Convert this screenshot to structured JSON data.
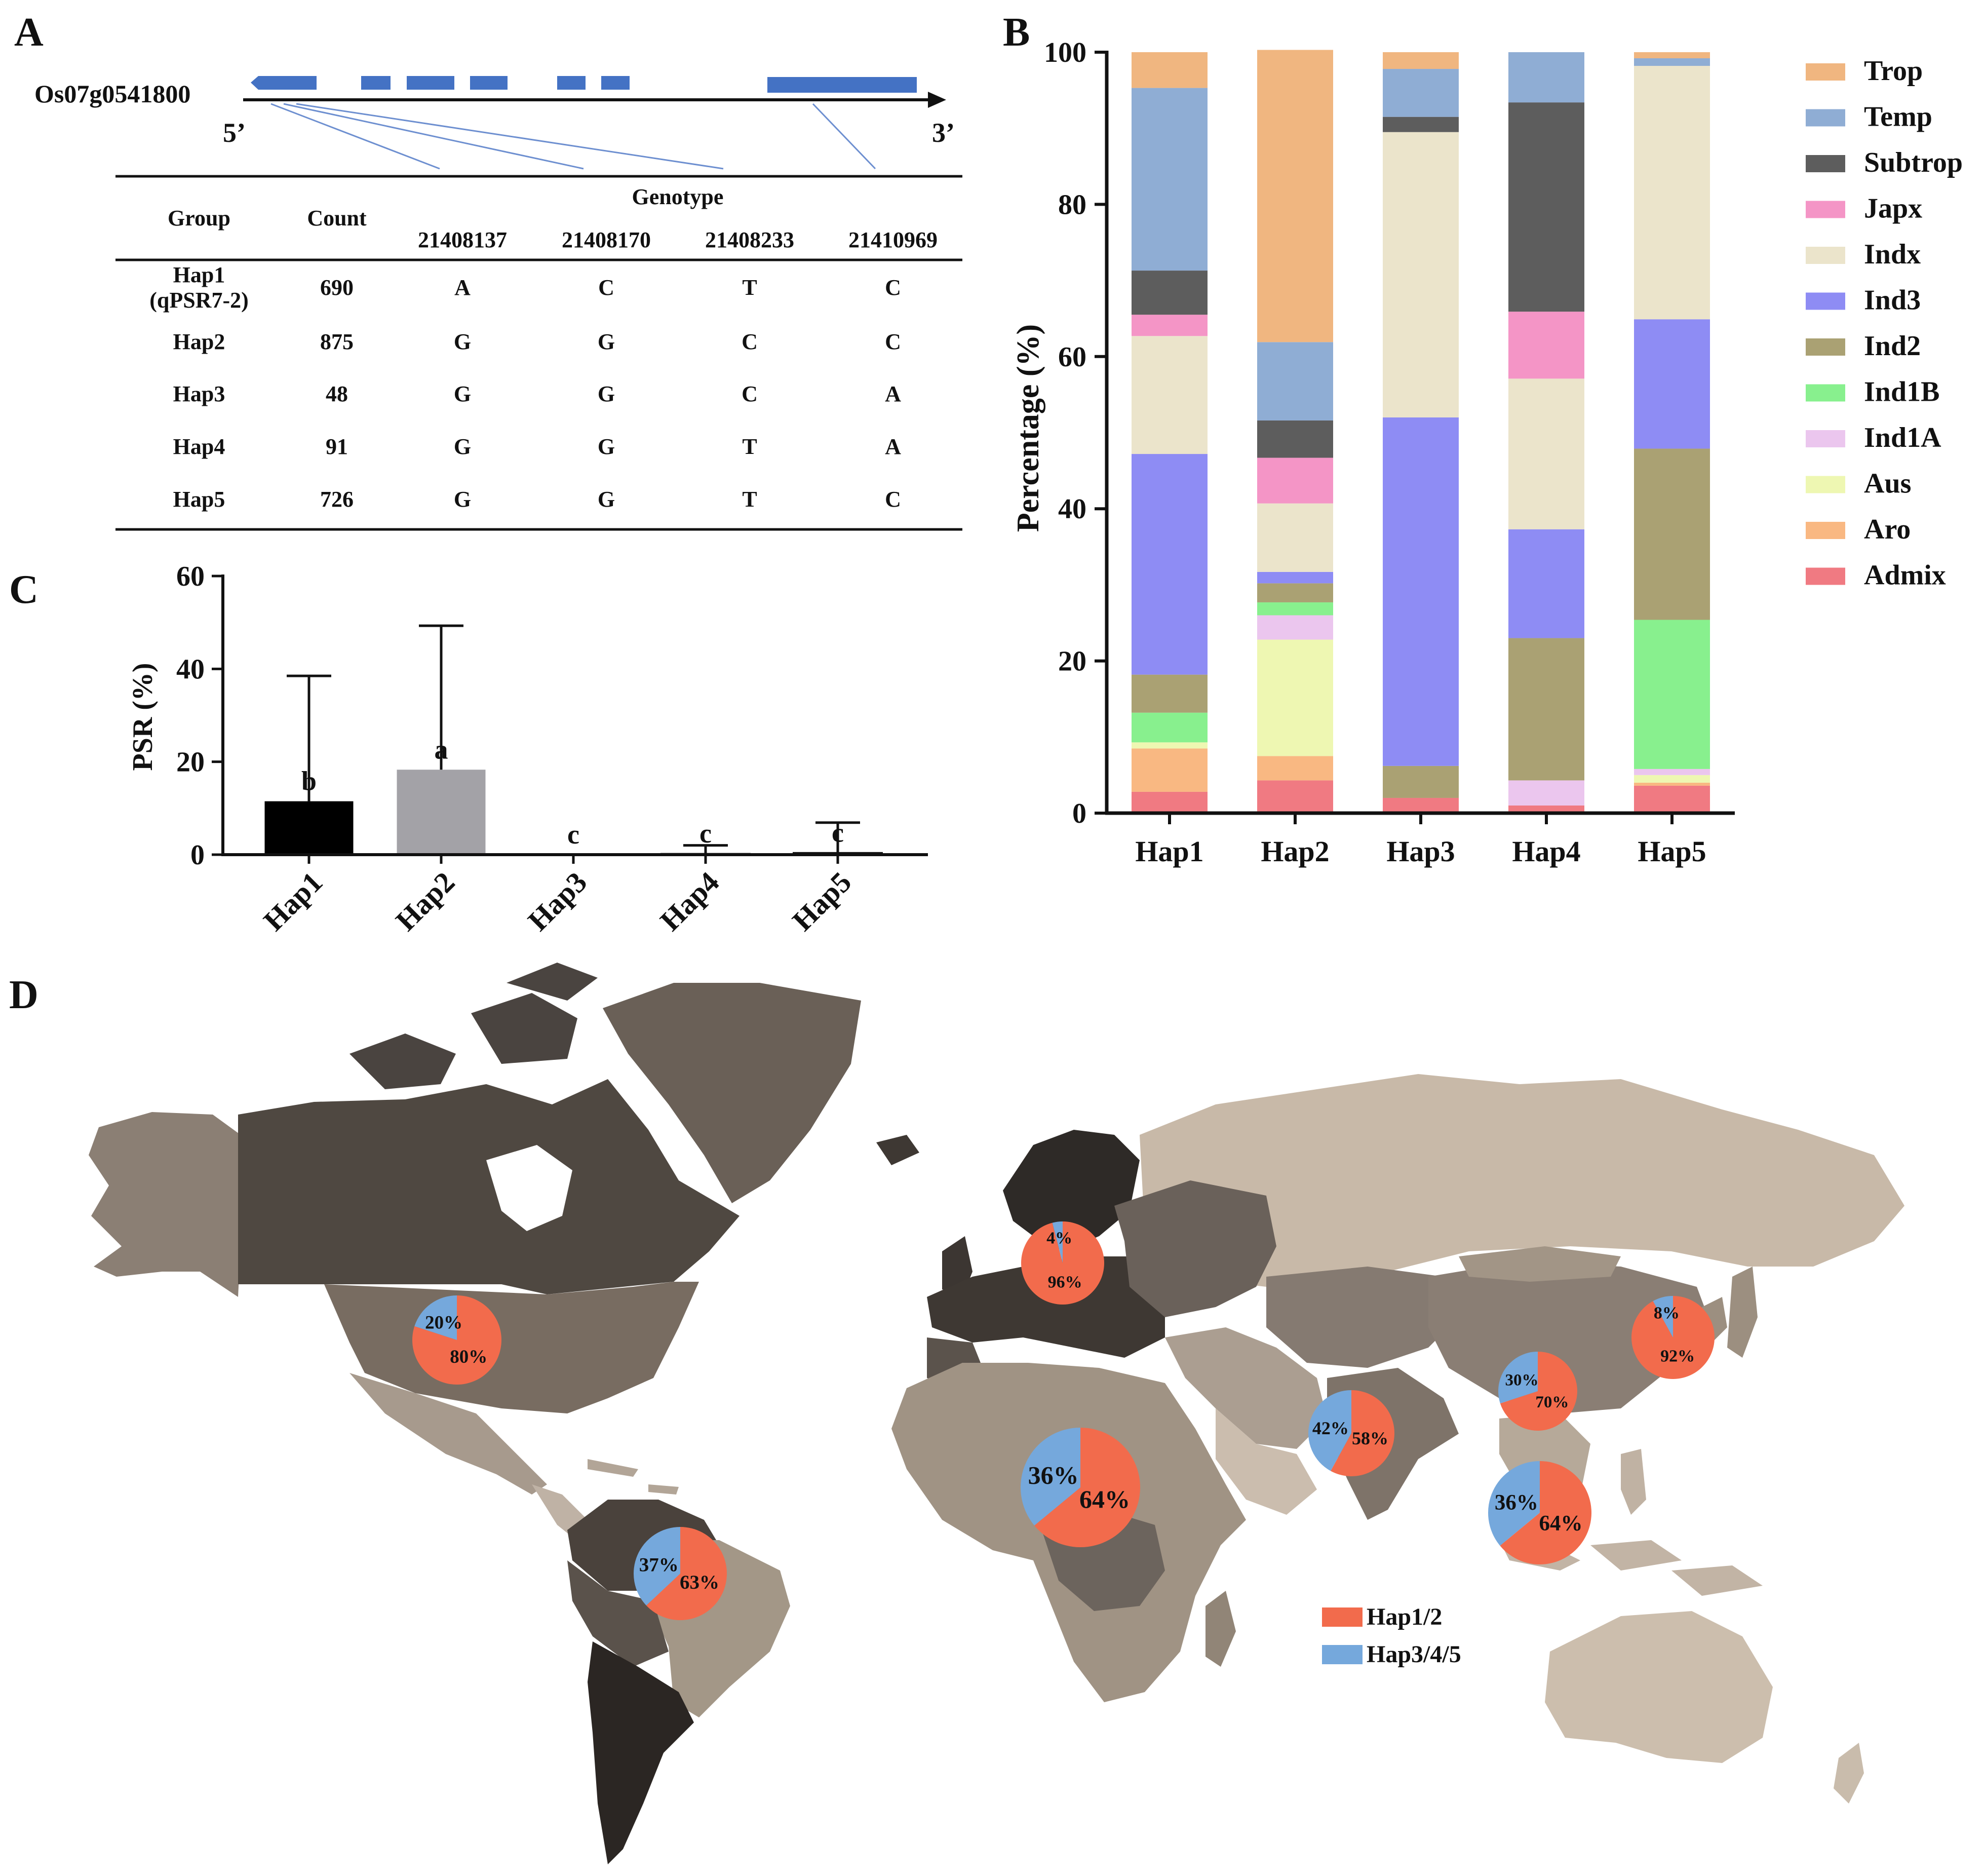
{
  "figure": {
    "panel_labels": [
      "A",
      "B",
      "C",
      "D"
    ]
  },
  "gene_model": {
    "gene_id": "Os07g0541800",
    "five_prime": "5’",
    "three_prime": "3’",
    "exon_color": "#4472c4"
  },
  "genotype_table": {
    "headers": {
      "group": "Group",
      "count": "Count",
      "genotype": "Genotype",
      "positions": [
        "21408137",
        "21408170",
        "21408233",
        "21410969"
      ]
    },
    "rows": [
      {
        "group": "Hap1",
        "group_sub": "(qPSR7-2)",
        "count": "690",
        "alleles": [
          "A",
          "C",
          "T",
          "C"
        ]
      },
      {
        "group": "Hap2",
        "group_sub": "",
        "count": "875",
        "alleles": [
          "G",
          "G",
          "C",
          "C"
        ]
      },
      {
        "group": "Hap3",
        "group_sub": "",
        "count": "48",
        "alleles": [
          "G",
          "G",
          "C",
          "A"
        ]
      },
      {
        "group": "Hap4",
        "group_sub": "",
        "count": "91",
        "alleles": [
          "G",
          "G",
          "T",
          "A"
        ]
      },
      {
        "group": "Hap5",
        "group_sub": "",
        "count": "726",
        "alleles": [
          "G",
          "G",
          "T",
          "C"
        ]
      }
    ]
  },
  "chart_data": [
    {
      "id": "B",
      "type": "bar",
      "stacked": true,
      "title": "",
      "xlabel": "",
      "ylabel": "Percentage (%)",
      "ylim": [
        0,
        100
      ],
      "yticks": [
        0,
        20,
        40,
        60,
        80,
        100
      ],
      "categories": [
        "Hap1",
        "Hap2",
        "Hap3",
        "Hap4",
        "Hap5"
      ],
      "legend_position": "right",
      "series": [
        {
          "name": "Admix",
          "color": "#f07a82",
          "values": [
            2.8,
            4.3,
            2.0,
            1.0,
            3.6
          ]
        },
        {
          "name": "Aro",
          "color": "#f9b882",
          "values": [
            5.7,
            3.2,
            0,
            0,
            0.4
          ]
        },
        {
          "name": "Aus",
          "color": "#eef7b2",
          "values": [
            0.8,
            15.3,
            0,
            0,
            1.0
          ]
        },
        {
          "name": "Ind1A",
          "color": "#ebc6ee",
          "values": [
            0,
            3.2,
            0,
            3.3,
            0.8
          ]
        },
        {
          "name": "Ind1B",
          "color": "#88f08e",
          "values": [
            3.9,
            1.7,
            0,
            0,
            19.6
          ]
        },
        {
          "name": "Ind2",
          "color": "#aaa173",
          "values": [
            5.0,
            2.5,
            4.2,
            18.7,
            22.5
          ]
        },
        {
          "name": "Ind3",
          "color": "#8e8cf4",
          "values": [
            29.0,
            1.5,
            45.8,
            14.3,
            17.0
          ]
        },
        {
          "name": "Indx",
          "color": "#ebe4cb",
          "values": [
            15.5,
            9.0,
            37.5,
            19.8,
            33.3
          ]
        },
        {
          "name": "Japx",
          "color": "#f495c6",
          "values": [
            2.8,
            6.0,
            0,
            8.8,
            0
          ]
        },
        {
          "name": "Subtrop",
          "color": "#5d5d5d",
          "values": [
            5.8,
            4.9,
            2.0,
            27.5,
            0
          ]
        },
        {
          "name": "Temp",
          "color": "#8fadd4",
          "values": [
            24.0,
            10.3,
            6.3,
            6.6,
            1.0
          ]
        },
        {
          "name": "Trop",
          "color": "#f0b680",
          "values": [
            4.7,
            38.4,
            2.2,
            0,
            0.8
          ]
        }
      ]
    },
    {
      "id": "C",
      "type": "bar",
      "title": "",
      "xlabel": "",
      "ylabel": "PSR (%)",
      "ylim": [
        0,
        60
      ],
      "yticks": [
        0,
        20,
        40,
        60
      ],
      "categories": [
        "Hap1",
        "Hap2",
        "Hap3",
        "Hap4",
        "Hap5"
      ],
      "values": [
        11.5,
        18.3,
        0,
        0.2,
        0.4
      ],
      "error_upper": [
        38.5,
        49.3,
        0,
        2.0,
        6.9
      ],
      "significance": [
        "b",
        "a",
        "c",
        "c",
        "c"
      ],
      "colors": [
        "#000000",
        "#a3a2a7",
        "#ffffff",
        "#ffffff",
        "#ffffff"
      ]
    },
    {
      "id": "D",
      "type": "pie",
      "title": "",
      "legend_position": "bottom-center",
      "legend": [
        {
          "name": "Hap1/2",
          "color": "#f26b4c"
        },
        {
          "name": "Hap3/4/5",
          "color": "#75a8dc"
        }
      ],
      "pies": [
        {
          "region": "North America",
          "hap12": 80,
          "hap345": 20,
          "label12": "80%",
          "label345": "20%"
        },
        {
          "region": "South America",
          "hap12": 63,
          "hap345": 37,
          "label12": "63%",
          "label345": "37%"
        },
        {
          "region": "Europe",
          "hap12": 96,
          "hap345": 4,
          "label12": "96%",
          "label345": "4%"
        },
        {
          "region": "Africa",
          "hap12": 64,
          "hap345": 36,
          "label12": "64%",
          "label345": "36%"
        },
        {
          "region": "South Asia",
          "hap12": 58,
          "hap345": 42,
          "label12": "58%",
          "label345": "42%"
        },
        {
          "region": "China",
          "hap12": 70,
          "hap345": 30,
          "label12": "70%",
          "label345": "30%"
        },
        {
          "region": "Japan",
          "hap12": 92,
          "hap345": 8,
          "label12": "92%",
          "label345": "8%"
        },
        {
          "region": "Southeast Asia",
          "hap12": 64,
          "hap345": 36,
          "label12": "64%",
          "label345": "36%"
        }
      ]
    }
  ]
}
